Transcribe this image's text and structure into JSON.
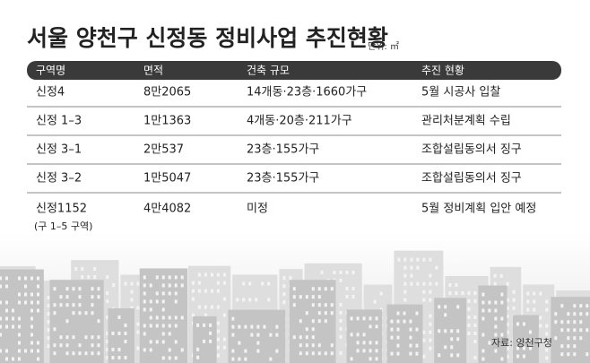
{
  "header": {
    "title": "서울 양천구 신정동 정비사업 추진현황",
    "unit": "단위: ㎡"
  },
  "table": {
    "columns": [
      "구역명",
      "면적",
      "건축 규모",
      "추진 현황"
    ],
    "rows": [
      {
        "cells": [
          "신정4",
          "8만2065",
          "14개동·23층·1660가구",
          "5월 시공사 입찰"
        ]
      },
      {
        "cells": [
          "신정 1–3",
          "1만1363",
          "4개동·20층·211가구",
          "관리처분계획 수립"
        ]
      },
      {
        "cells": [
          "신정 3–1",
          "2만537",
          "23층·155가구",
          "조합설립동의서 징구"
        ]
      },
      {
        "cells": [
          "신정 3–2",
          "1만5047",
          "23층·155가구",
          "조합설립동의서 징구"
        ]
      },
      {
        "cells": [
          "신정1152",
          "4만4082",
          "미정",
          "5월 정비계획 입안 예정"
        ],
        "subtext": "(구 1–5 구역)"
      }
    ]
  },
  "footer": {
    "source": "자료: 양천구청"
  }
}
